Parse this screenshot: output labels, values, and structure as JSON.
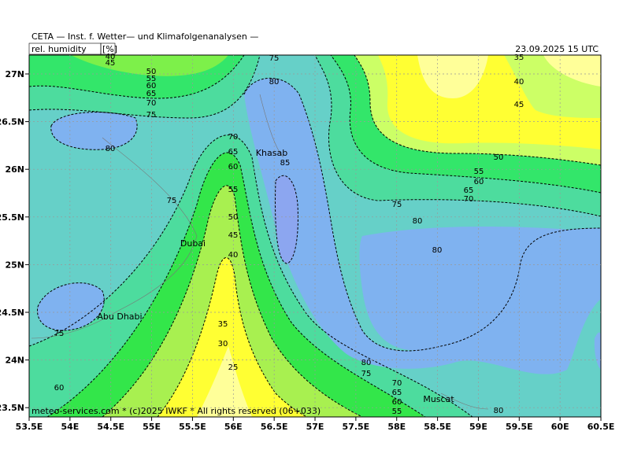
{
  "header": {
    "title": "CETA — Inst. f. Wetter— und Klimafolgenanalysen —",
    "variable": "rel. humidity",
    "unit": "[%]",
    "datetime": "23.09.2025 15 UTC"
  },
  "axes": {
    "x_labels": [
      "53.5E",
      "54E",
      "54.5E",
      "55E",
      "55.5E",
      "56E",
      "56.5E",
      "57E",
      "57.5E",
      "58E",
      "58.5E",
      "59E",
      "59.5E",
      "60E",
      "60.5E"
    ],
    "y_labels": [
      "27N",
      "26.5N",
      "26N",
      "25.5N",
      "25N",
      "24.5N",
      "24N",
      "23.5N"
    ]
  },
  "places": [
    "Khasab",
    "Dubai",
    "Abu Dhabi",
    "Muscat"
  ],
  "contour_labels": [
    "40",
    "45",
    "50",
    "55",
    "60",
    "65",
    "70",
    "75",
    "75",
    "80",
    "80",
    "75",
    "70",
    "65",
    "60",
    "55",
    "50",
    "45",
    "40",
    "35",
    "30",
    "25",
    "85",
    "35",
    "40",
    "45",
    "50",
    "55",
    "60",
    "65",
    "70",
    "75",
    "80",
    "80",
    "80",
    "75",
    "70",
    "65",
    "60",
    "55",
    "80",
    "75",
    "60"
  ],
  "footer": "meteo-services.com * (c)2025 IWKF * All rights reserved (06+033)"
}
